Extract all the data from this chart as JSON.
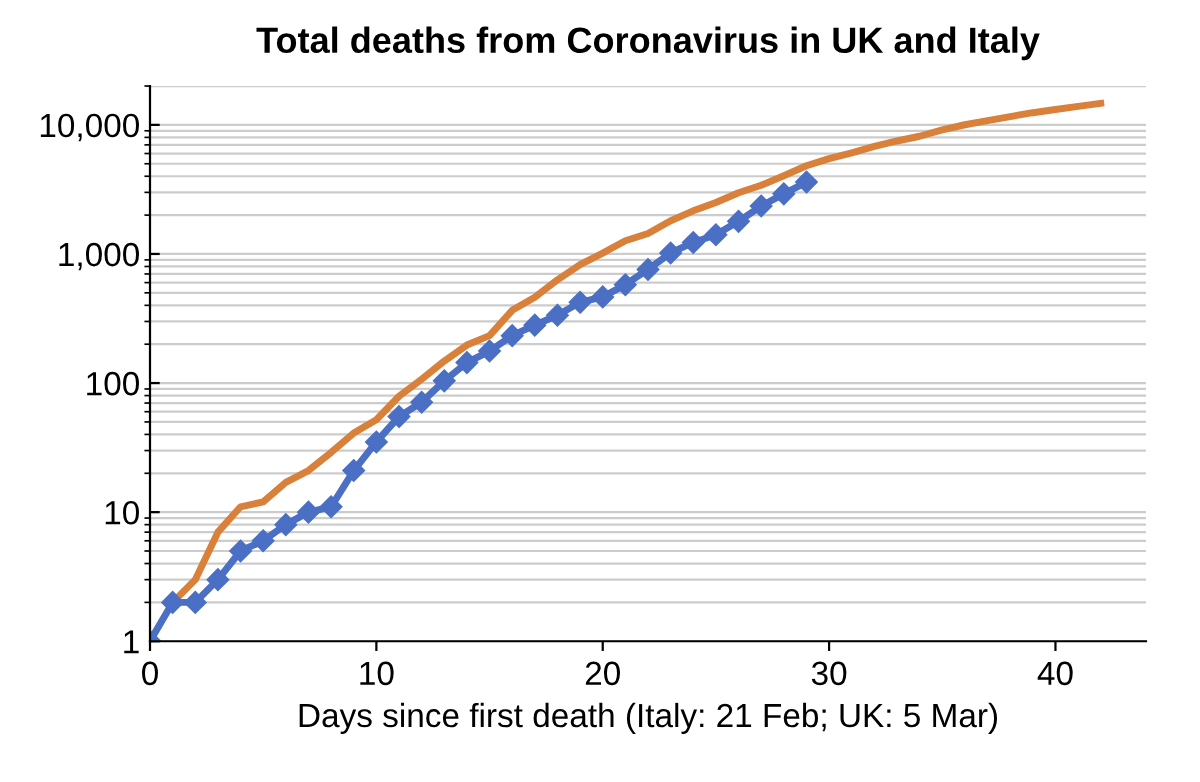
{
  "chart_data": {
    "type": "line",
    "title": "Total deaths from Coronavirus in UK and Italy",
    "xlabel": "Days since first death (Italy: 21 Feb; UK: 5 Mar)",
    "x": [
      1,
      2,
      3,
      4,
      5,
      6,
      7,
      8,
      9,
      10,
      11,
      12,
      13,
      14,
      15,
      16,
      17,
      18,
      19,
      20,
      21,
      22,
      23,
      24,
      25,
      26,
      27,
      28,
      29,
      30,
      31,
      32,
      33,
      34,
      35,
      36,
      37,
      38,
      39,
      40,
      41,
      42
    ],
    "series": [
      {
        "color": "#d9803a",
        "marker": "none",
        "values": [
          2,
          3,
          7,
          11,
          12,
          17,
          21,
          29,
          41,
          52,
          79,
          107,
          148,
          197,
          233,
          366,
          463,
          631,
          827,
          1016,
          1266,
          1441,
          1809,
          2158,
          2503,
          2978,
          3405,
          4032,
          4825,
          5476,
          6077,
          6820,
          7503,
          8165,
          9134,
          10023,
          10779,
          11591,
          12428,
          13155,
          13915,
          14681
        ]
      },
      {
        "color": "#4a6fc4",
        "marker": "diamond",
        "x": [
          0,
          1,
          2,
          3,
          4,
          5,
          6,
          7,
          8,
          9,
          10,
          11,
          12,
          13,
          14,
          15,
          16,
          17,
          18,
          19,
          20,
          21,
          22,
          23,
          24,
          25,
          26,
          27,
          28,
          29
        ],
        "values": [
          1,
          2,
          2,
          3,
          5,
          6,
          8,
          10,
          11,
          21,
          35,
          55,
          71,
          104,
          144,
          177,
          233,
          281,
          335,
          422,
          465,
          578,
          759,
          1019,
          1228,
          1408,
          1789,
          2352,
          2921,
          3605
        ]
      }
    ],
    "log": "y",
    "xlim": [
      0,
      44
    ],
    "ylim": [
      1,
      20000
    ],
    "xticks": [
      0,
      10,
      20,
      30,
      40
    ],
    "yticks": [
      1,
      {
        "value": 10,
        "label": "10"
      },
      {
        "value": 100,
        "label": "100"
      },
      {
        "value": 1000,
        "label": "1,000"
      },
      {
        "value": 10000,
        "label": "10,000"
      }
    ],
    "grid": "y",
    "line_style": "solid"
  }
}
